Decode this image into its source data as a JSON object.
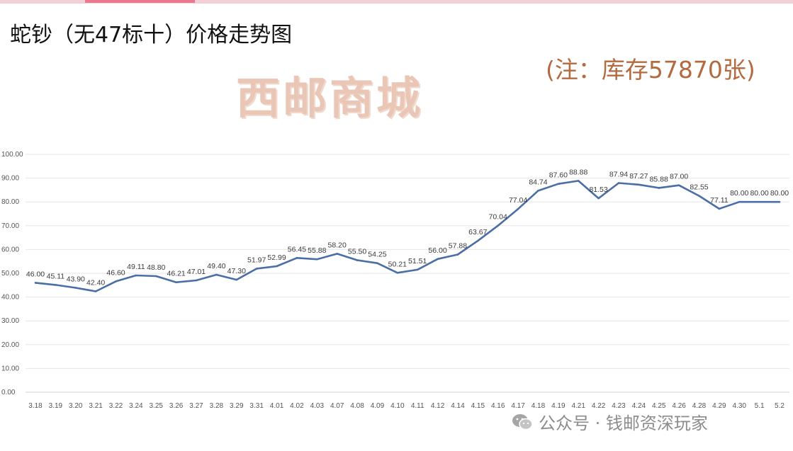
{
  "page": {
    "title": "蛇钞（无47标十）价格走势图",
    "watermark": "西邮商城",
    "note": "(注：库存57870张)",
    "footer": "公众号 · 钱邮资深玩家",
    "footer_icon": "wechat-icon"
  },
  "colors": {
    "line": "#4a6ea5",
    "grid": "#e6e6e6",
    "label": "#3a3a3a",
    "note": "#b36a3f",
    "watermark": "#e9c6b6"
  },
  "chart_data": {
    "type": "line",
    "title": "蛇钞（无47标十）价格走势图",
    "xlabel": "",
    "ylabel": "",
    "ylim": [
      0,
      100
    ],
    "yticks": [
      "0.00",
      "10.00",
      "20.00",
      "30.00",
      "40.00",
      "50.00",
      "60.00",
      "70.00",
      "80.00",
      "90.00",
      "100.00"
    ],
    "grid": true,
    "legend": "none",
    "categories": [
      "3.18",
      "3.19",
      "3.20",
      "3.21",
      "3.22",
      "3.24",
      "3.25",
      "3.26",
      "3.27",
      "3.28",
      "3.29",
      "3.31",
      "4.01",
      "4.02",
      "4.03",
      "4.07",
      "4.08",
      "4.09",
      "4.10",
      "4.11",
      "4.12",
      "4.14",
      "4.15",
      "4.16",
      "4.17",
      "4.18",
      "4.19",
      "4.21",
      "4.22",
      "4.23",
      "4.24",
      "4.25",
      "4.26",
      "4.28",
      "4.29",
      "4.30",
      "5.1",
      "5.2"
    ],
    "values": [
      46.0,
      45.11,
      43.9,
      42.4,
      46.6,
      49.11,
      48.8,
      46.21,
      47.01,
      49.4,
      47.3,
      51.97,
      52.99,
      56.45,
      55.88,
      58.2,
      55.5,
      54.25,
      50.21,
      51.51,
      56.0,
      57.88,
      63.67,
      70.04,
      77.04,
      84.74,
      87.6,
      88.88,
      81.53,
      87.94,
      87.27,
      85.88,
      87.0,
      82.55,
      77.11,
      80.0,
      80.0,
      80.0
    ],
    "data_labels": [
      "46.00",
      "45.11",
      "43.90",
      "42.40",
      "46.60",
      "49.11",
      "48.80",
      "46.21",
      "47.01",
      "49.40",
      "47.30",
      "51.97",
      "52.99",
      "56.45",
      "55.88",
      "58.20",
      "55.50",
      "54.25",
      "50.21",
      "51.51",
      "56.00",
      "57.88",
      "63.67",
      "70.04",
      "77.04",
      "84.74",
      "87.60",
      "88.88",
      "81.53",
      "87.94",
      "87.27",
      "85.88",
      "87.00",
      "82.55",
      "77.11",
      "80.00",
      "80.00",
      "80.00"
    ]
  }
}
